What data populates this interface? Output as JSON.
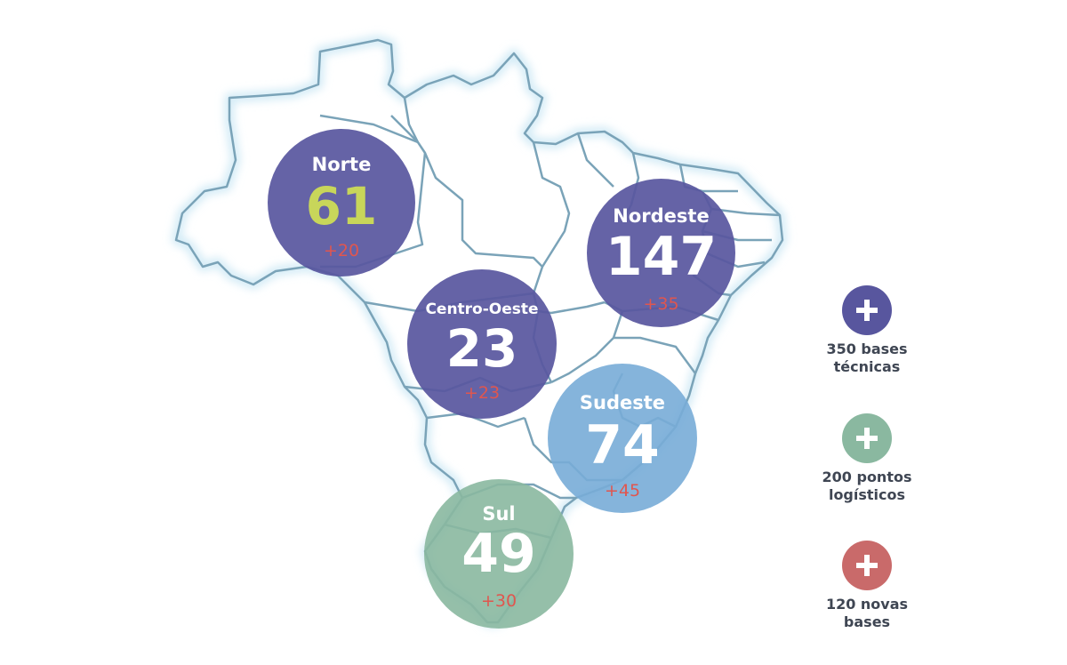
{
  "regions": [
    {
      "key": "norte",
      "name": "Norte",
      "count": "61",
      "added": "+20",
      "count_color": "#c8d65a"
    },
    {
      "key": "nordeste",
      "name": "Nordeste",
      "count": "147",
      "added": "+35",
      "count_color": "#ffffff"
    },
    {
      "key": "centro",
      "name": "Centro-Oeste",
      "count": "23",
      "added": "+23",
      "count_color": "#ffffff"
    },
    {
      "key": "sudeste",
      "name": "Sudeste",
      "count": "74",
      "added": "+45",
      "count_color": "#ffffff"
    },
    {
      "key": "sul",
      "name": "Sul",
      "count": "49",
      "added": "+30",
      "count_color": "#ffffff"
    }
  ],
  "legend": [
    {
      "line1": "350 bases",
      "line2": "técnicas",
      "color": "#58569e",
      "icon": "plus-icon"
    },
    {
      "line1": "200 pontos",
      "line2": "logísticos",
      "color": "#8ab8a0",
      "icon": "plus-icon"
    },
    {
      "line1": "120 novas",
      "line2": "bases",
      "color": "#c96a6a",
      "icon": "plus-icon"
    }
  ],
  "colors": {
    "map_outline": "#7aa3b8",
    "map_glow": "#cfe9f5",
    "added_text": "#e0564f",
    "legend_text": "#3f4653"
  }
}
